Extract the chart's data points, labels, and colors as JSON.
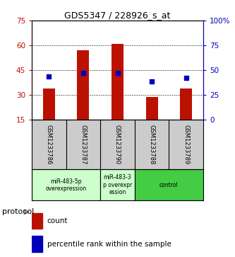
{
  "title": "GDS5347 / 228926_s_at",
  "samples": [
    "GSM1233786",
    "GSM1233787",
    "GSM1233790",
    "GSM1233788",
    "GSM1233789"
  ],
  "bar_values": [
    34,
    57,
    61,
    29,
    34
  ],
  "percentile_values": [
    44,
    47,
    47,
    39,
    42
  ],
  "bar_color": "#bb1100",
  "dot_color": "#0000bb",
  "ylim_left": [
    15,
    75
  ],
  "ylim_right": [
    0,
    100
  ],
  "left_ticks": [
    15,
    30,
    45,
    60,
    75
  ],
  "right_ticks": [
    0,
    25,
    50,
    75,
    100
  ],
  "right_tick_labels": [
    "0",
    "25",
    "50",
    "75",
    "100%"
  ],
  "grid_values": [
    30,
    45,
    60
  ],
  "group_spans": [
    [
      0,
      2,
      "miR-483-5p\noverexpression",
      "#ccffcc"
    ],
    [
      2,
      3,
      "miR-483-3\np overexpr\nession",
      "#ccffcc"
    ],
    [
      3,
      5,
      "control",
      "#44cc44"
    ]
  ],
  "sample_box_color": "#cccccc",
  "protocol_label": "protocol",
  "legend_count_label": "count",
  "legend_pct_label": "percentile rank within the sample",
  "background_color": "#ffffff"
}
